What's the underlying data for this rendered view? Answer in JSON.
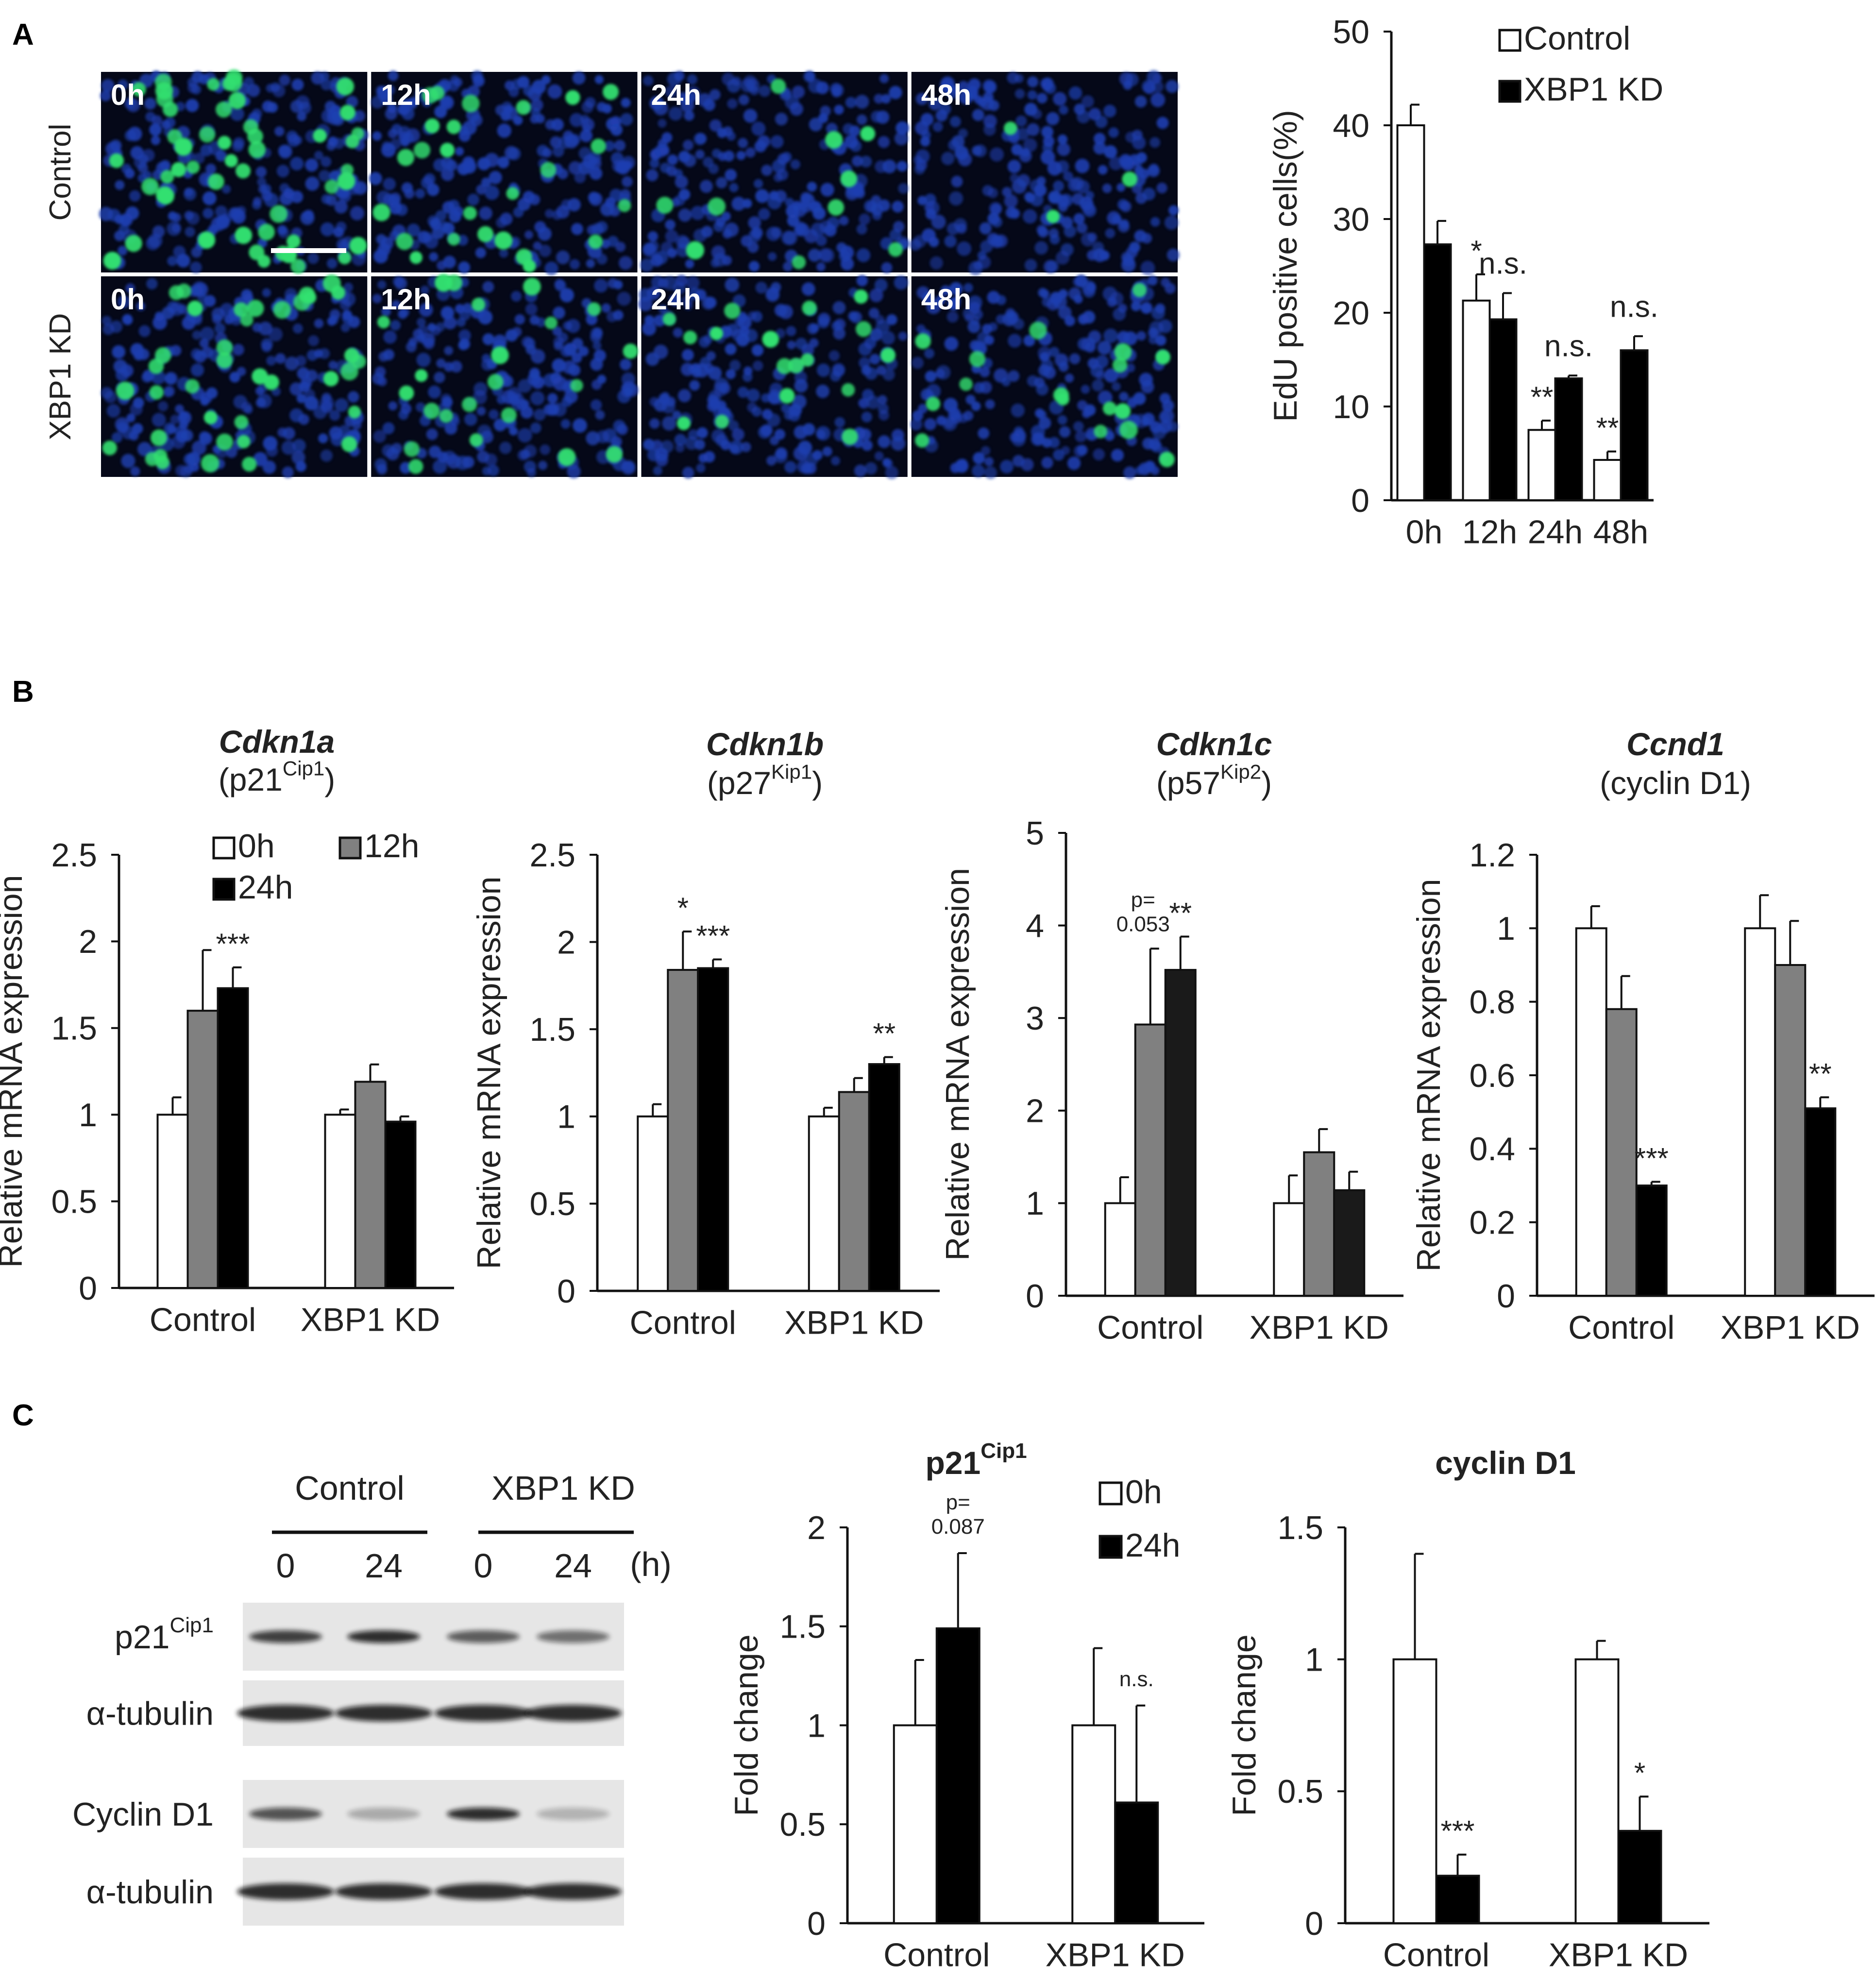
{
  "panels": {
    "a": "A",
    "b": "B",
    "c": "C"
  },
  "microscopy": {
    "row_labels": [
      "Control",
      "XBP1 KD"
    ],
    "time_labels": [
      "0h",
      "12h",
      "24h",
      "48h"
    ],
    "scale_bar": true,
    "nucleus_color": "#1f3fb0",
    "edu_color": "#33e070",
    "edu_density": [
      [
        0.9,
        0.45,
        0.18,
        0.06
      ],
      [
        0.7,
        0.4,
        0.3,
        0.3
      ]
    ]
  },
  "blots": {
    "groups": [
      "Control",
      "XBP1 KD"
    ],
    "lanes": [
      "0",
      "24",
      "0",
      "24"
    ],
    "time_unit": "(h)",
    "rows": [
      {
        "label": "p21",
        "sup": "Cip1",
        "intensity": [
          0.85,
          0.95,
          0.7,
          0.6
        ]
      },
      {
        "label": "α-tubulin",
        "sup": "",
        "intensity": [
          0.95,
          0.95,
          0.95,
          0.95
        ]
      },
      {
        "label": "Cyclin D1",
        "sup": "",
        "intensity": [
          0.75,
          0.3,
          0.95,
          0.25
        ]
      },
      {
        "label": "α-tubulin",
        "sup": "",
        "intensity": [
          0.95,
          0.95,
          0.95,
          0.95
        ]
      }
    ]
  },
  "chart_data": [
    {
      "id": "edu",
      "type": "bar",
      "categories": [
        "0h",
        "12h",
        "24h",
        "48h"
      ],
      "series": [
        {
          "name": "Control",
          "values": [
            40,
            21.3,
            7.5,
            4.3
          ],
          "errors": [
            2.2,
            2.8,
            1.0,
            0.9
          ],
          "color": "#ffffff"
        },
        {
          "name": "XBP1 KD",
          "values": [
            27.3,
            19.3,
            13,
            16
          ],
          "errors": [
            2.5,
            2.8,
            0.3,
            1.5
          ],
          "color": "#000000"
        }
      ],
      "ylabel": "EdU positive cells(%)",
      "ylim": [
        0,
        50
      ],
      "yticks": [
        "0",
        "10",
        "20",
        "30",
        "40",
        "50"
      ],
      "legend": "top-right",
      "annotations": [
        {
          "cat": 1,
          "ser": 0,
          "text": "*"
        },
        {
          "cat": 1,
          "ser": 1,
          "text": "n.s."
        },
        {
          "cat": 2,
          "ser": 0,
          "text": "**"
        },
        {
          "cat": 2,
          "ser": 1,
          "text": "n.s."
        },
        {
          "cat": 3,
          "ser": 0,
          "text": "**"
        },
        {
          "cat": 3,
          "ser": 1,
          "text": "n.s."
        }
      ]
    },
    {
      "id": "cdkn1a",
      "type": "bar",
      "title": "Cdkn1a",
      "subtitle_main": "(p21",
      "subtitle_sup": "Cip1",
      "subtitle_end": ")",
      "categories": [
        "Control",
        "XBP1 KD"
      ],
      "series": [
        {
          "name": "0h",
          "values": [
            1,
            1
          ],
          "errors": [
            0.1,
            0.03
          ],
          "color": "#ffffff"
        },
        {
          "name": "12h",
          "values": [
            1.6,
            1.19
          ],
          "errors": [
            0.35,
            0.1
          ],
          "color": "#808080"
        },
        {
          "name": "24h",
          "values": [
            1.73,
            0.96
          ],
          "errors": [
            0.12,
            0.03
          ],
          "color": "#000000"
        }
      ],
      "ylabel": "Relative mRNA expression",
      "ylim": [
        0,
        2.5
      ],
      "yticks": [
        "0",
        "0.5",
        "1",
        "1.5",
        "2",
        "2.5"
      ],
      "legend": "top-left",
      "annotations": [
        {
          "cat": 0,
          "ser": 2,
          "text": "***"
        }
      ]
    },
    {
      "id": "cdkn1b",
      "type": "bar",
      "title": "Cdkn1b",
      "subtitle_main": "(p27",
      "subtitle_sup": "Kip1",
      "subtitle_end": ")",
      "categories": [
        "Control",
        "XBP1 KD"
      ],
      "series": [
        {
          "name": "0h",
          "values": [
            1,
            1
          ],
          "errors": [
            0.07,
            0.05
          ],
          "color": "#ffffff"
        },
        {
          "name": "12h",
          "values": [
            1.84,
            1.14
          ],
          "errors": [
            0.22,
            0.08
          ],
          "color": "#808080"
        },
        {
          "name": "24h",
          "values": [
            1.85,
            1.3
          ],
          "errors": [
            0.05,
            0.04
          ],
          "color": "#000000"
        }
      ],
      "ylabel": "Relative mRNA expression",
      "ylim": [
        0,
        2.5
      ],
      "yticks": [
        "0",
        "0.5",
        "1",
        "1.5",
        "2",
        "2.5"
      ],
      "annotations": [
        {
          "cat": 0,
          "ser": 1,
          "text": "*"
        },
        {
          "cat": 0,
          "ser": 2,
          "text": "***"
        },
        {
          "cat": 1,
          "ser": 2,
          "text": "**"
        }
      ]
    },
    {
      "id": "cdkn1c",
      "type": "bar",
      "title": "Cdkn1c",
      "subtitle_main": "(p57",
      "subtitle_sup": "Kip2",
      "subtitle_end": ")",
      "categories": [
        "Control",
        "XBP1 KD"
      ],
      "series": [
        {
          "name": "0h",
          "values": [
            1,
            1
          ],
          "errors": [
            0.28,
            0.3
          ],
          "color": "#ffffff"
        },
        {
          "name": "12h",
          "values": [
            2.93,
            1.55
          ],
          "errors": [
            0.82,
            0.25
          ],
          "color": "#808080"
        },
        {
          "name": "24h",
          "values": [
            3.52,
            1.14
          ],
          "errors": [
            0.36,
            0.2
          ],
          "color": "#1a1a1a"
        }
      ],
      "ylabel": "Relative mRNA expression",
      "ylim": [
        0,
        5
      ],
      "yticks": [
        "0",
        "1",
        "2",
        "3",
        "4",
        "5"
      ],
      "pvalue_label": [
        "p=",
        "0.053"
      ],
      "annotations": [
        {
          "cat": 0,
          "ser": 2,
          "text": "**"
        }
      ]
    },
    {
      "id": "ccnd1",
      "type": "bar",
      "title": "Ccnd1",
      "subtitle_main": "(cyclin D1)",
      "subtitle_sup": "",
      "subtitle_end": "",
      "categories": [
        "Control",
        "XBP1 KD"
      ],
      "series": [
        {
          "name": "0h",
          "values": [
            1,
            1
          ],
          "errors": [
            0.06,
            0.09
          ],
          "color": "#ffffff"
        },
        {
          "name": "12h",
          "values": [
            0.78,
            0.9
          ],
          "errors": [
            0.09,
            0.12
          ],
          "color": "#808080"
        },
        {
          "name": "24h",
          "values": [
            0.3,
            0.51
          ],
          "errors": [
            0.01,
            0.03
          ],
          "color": "#000000"
        }
      ],
      "ylabel": "Relative mRNA expression",
      "ylim": [
        0,
        1.2
      ],
      "yticks": [
        "0",
        "0.2",
        "0.4",
        "0.6",
        "0.8",
        "1",
        "1.2"
      ],
      "annotations": [
        {
          "cat": 0,
          "ser": 2,
          "text": "***"
        },
        {
          "cat": 1,
          "ser": 2,
          "text": "**"
        }
      ]
    },
    {
      "id": "p21fold",
      "type": "bar",
      "title": "p21",
      "title_sup": "Cip1",
      "categories": [
        "Control",
        "XBP1 KD"
      ],
      "series": [
        {
          "name": "0h",
          "values": [
            1,
            1
          ],
          "errors": [
            0.33,
            0.39
          ],
          "color": "#ffffff"
        },
        {
          "name": "24h",
          "values": [
            1.49,
            0.61
          ],
          "errors": [
            0.38,
            0.49
          ],
          "color": "#000000"
        }
      ],
      "ylabel": "Fold change",
      "ylim": [
        0,
        2
      ],
      "yticks": [
        "0",
        "0.5",
        "1",
        "1.5",
        "2"
      ],
      "legend": "top-right",
      "pvalue_label": [
        "p=",
        "0.087"
      ],
      "annotations": [
        {
          "cat": 1,
          "ser": 1,
          "text": "n.s."
        }
      ]
    },
    {
      "id": "cycd1fold",
      "type": "bar",
      "title": "cyclin D1",
      "categories": [
        "Control",
        "XBP1 KD"
      ],
      "series": [
        {
          "name": "0h",
          "values": [
            1,
            1
          ],
          "errors": [
            0.4,
            0.07
          ],
          "color": "#ffffff"
        },
        {
          "name": "24h",
          "values": [
            0.18,
            0.35
          ],
          "errors": [
            0.08,
            0.13
          ],
          "color": "#000000"
        }
      ],
      "ylabel": "Fold change",
      "ylim": [
        0,
        1.5
      ],
      "yticks": [
        "0",
        "0.5",
        "1",
        "1.5"
      ],
      "annotations": [
        {
          "cat": 0,
          "ser": 1,
          "text": "***"
        },
        {
          "cat": 1,
          "ser": 1,
          "text": "*"
        }
      ]
    }
  ]
}
